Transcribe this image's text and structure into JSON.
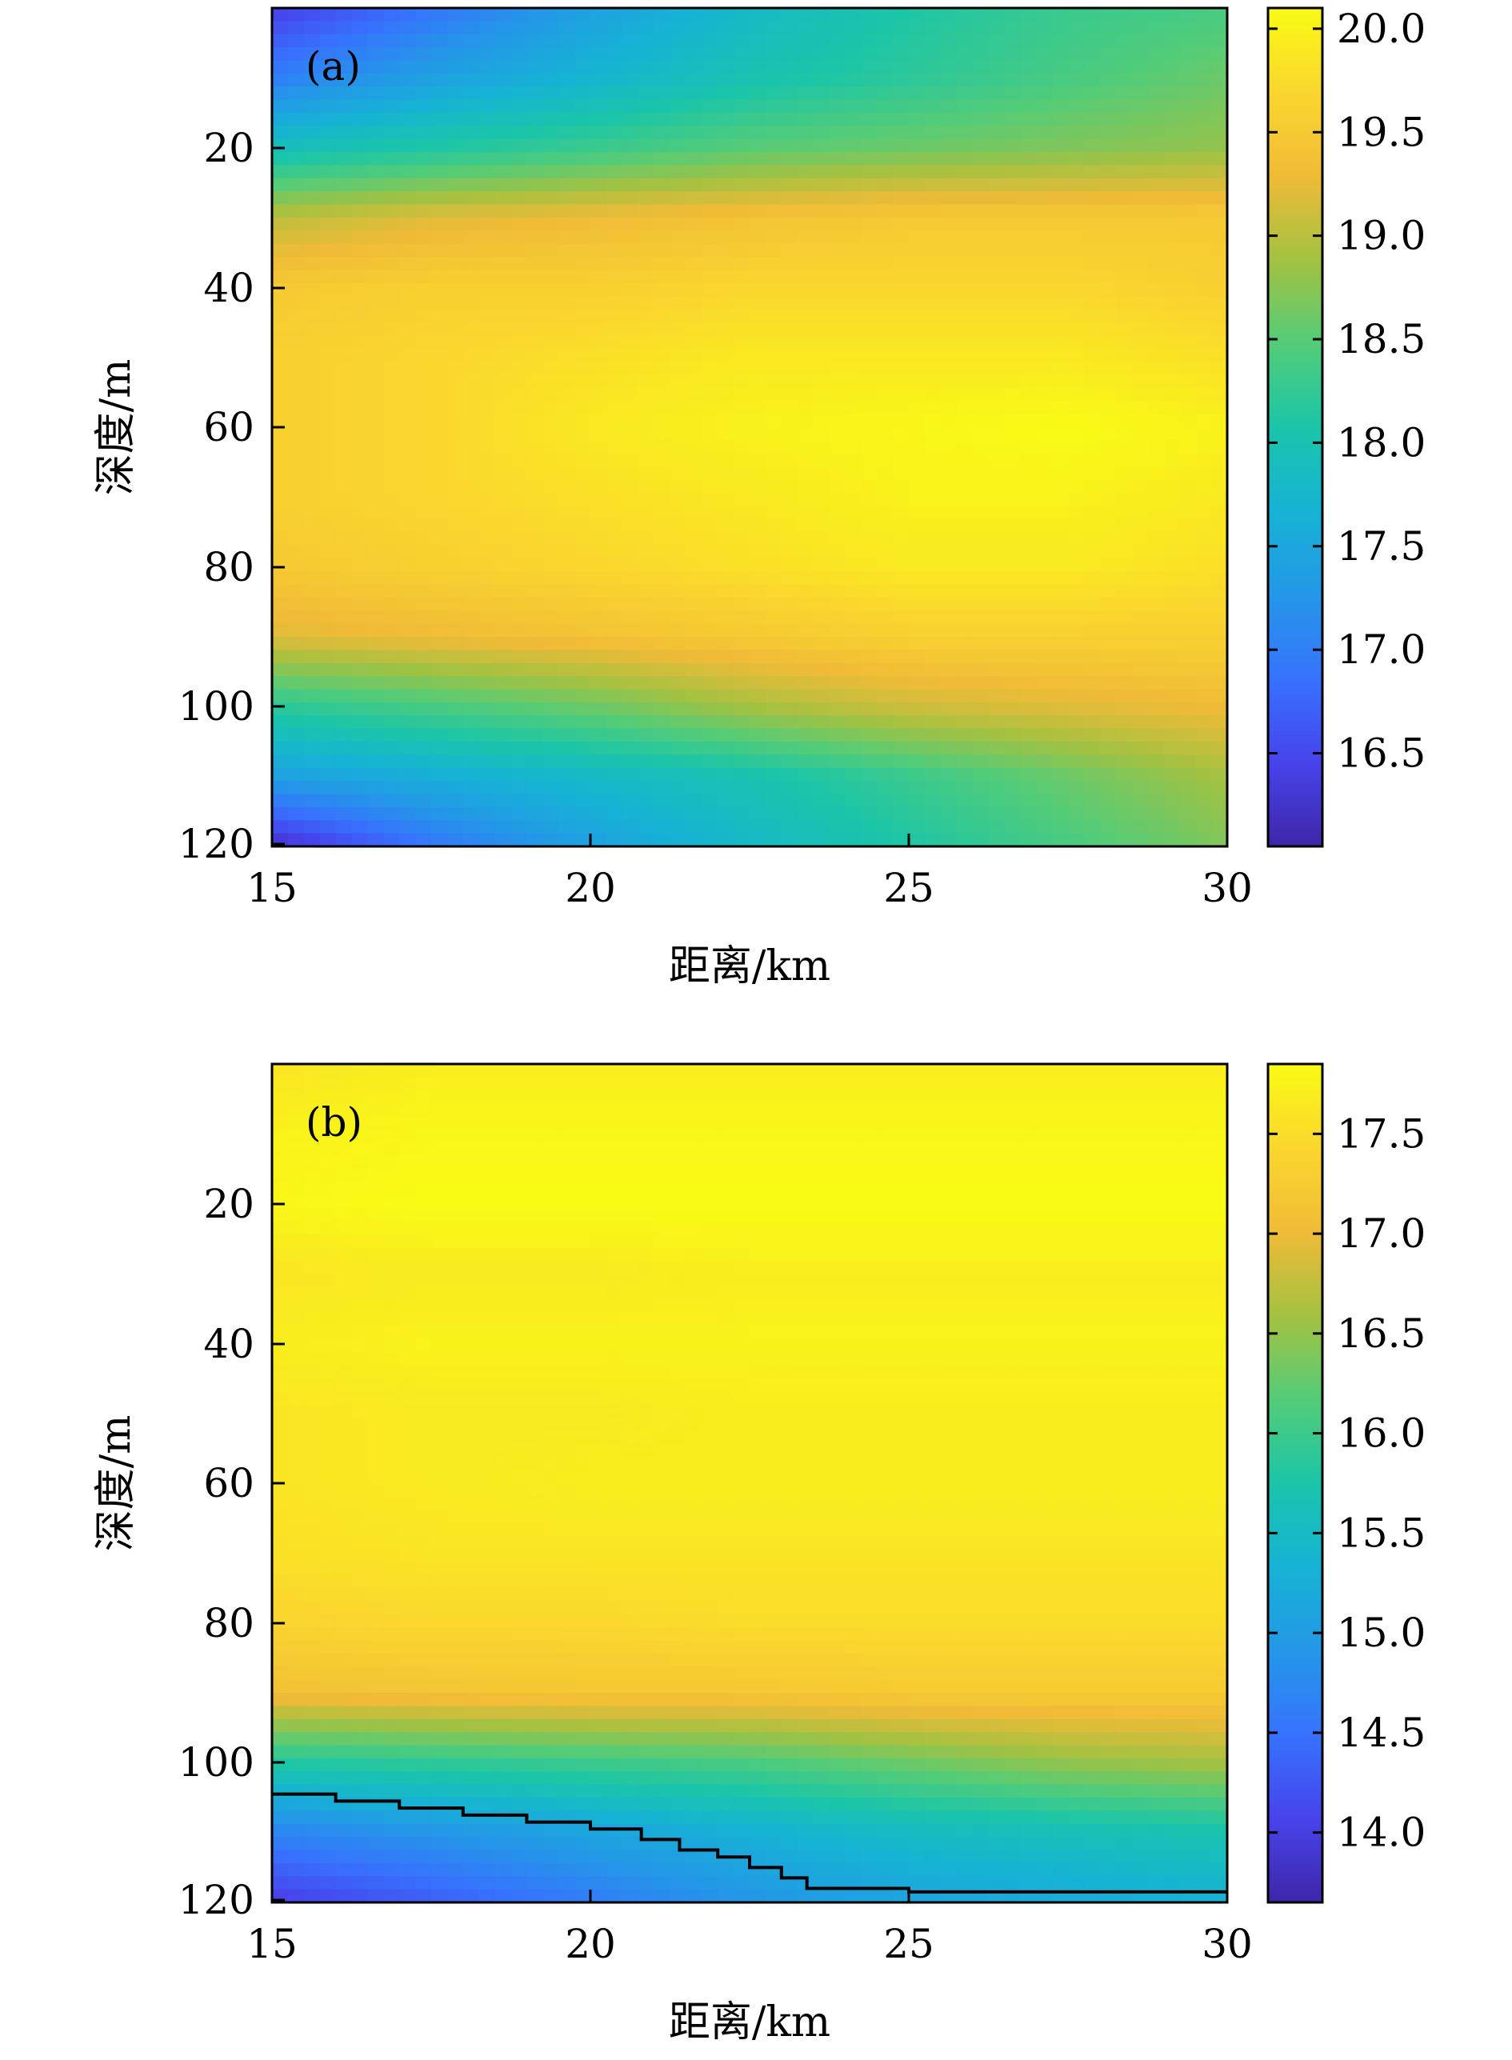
{
  "chart_data": [
    {
      "type": "heatmap",
      "panel_label": "(a)",
      "xlabel": "距离/km",
      "ylabel": "深度/m",
      "xlim": [
        15,
        30
      ],
      "ylim": [
        0,
        120
      ],
      "y_axis_direction": "down",
      "x_ticks": [
        "15",
        "20",
        "25",
        "30"
      ],
      "y_ticks": [
        "20",
        "40",
        "60",
        "80",
        "100",
        "120"
      ],
      "colorbar": {
        "range": [
          16.05,
          20.1
        ],
        "ticks": [
          "16.5",
          "17.0",
          "17.5",
          "18.0",
          "18.5",
          "19.0",
          "19.5",
          "20.0"
        ]
      },
      "field": {
        "x": [
          15,
          17.5,
          20,
          22.5,
          25,
          27.5,
          30
        ],
        "depth": [
          0,
          10,
          20,
          30,
          40,
          50,
          60,
          70,
          80,
          90,
          100,
          110,
          120
        ],
        "values": [
          [
            16.4,
            16.9,
            17.4,
            17.8,
            18.1,
            18.3,
            18.4
          ],
          [
            17.0,
            17.4,
            17.7,
            18.0,
            18.2,
            18.4,
            18.6
          ],
          [
            17.9,
            18.1,
            18.3,
            18.5,
            18.6,
            18.7,
            18.8
          ],
          [
            19.0,
            19.2,
            19.3,
            19.4,
            19.5,
            19.5,
            19.5
          ],
          [
            19.5,
            19.6,
            19.6,
            19.7,
            19.7,
            19.7,
            19.6
          ],
          [
            19.6,
            19.7,
            19.8,
            19.9,
            19.9,
            19.9,
            19.8
          ],
          [
            19.6,
            19.7,
            19.9,
            20.0,
            20.05,
            20.1,
            20.0
          ],
          [
            19.6,
            19.7,
            19.8,
            19.9,
            20.0,
            20.0,
            19.9
          ],
          [
            19.5,
            19.6,
            19.7,
            19.8,
            19.9,
            19.9,
            19.8
          ],
          [
            19.2,
            19.3,
            19.4,
            19.5,
            19.6,
            19.6,
            19.6
          ],
          [
            18.2,
            18.4,
            18.6,
            18.9,
            19.1,
            19.2,
            19.3
          ],
          [
            17.4,
            17.6,
            17.8,
            18.0,
            18.3,
            18.6,
            18.9
          ],
          [
            16.2,
            16.9,
            17.4,
            17.8,
            18.1,
            18.4,
            18.7
          ]
        ]
      }
    },
    {
      "type": "heatmap",
      "panel_label": "(b)",
      "xlabel": "距离/km",
      "ylabel": "深度/m",
      "xlim": [
        15,
        30
      ],
      "ylim": [
        0,
        120
      ],
      "y_axis_direction": "down",
      "x_ticks": [
        "15",
        "20",
        "25",
        "30"
      ],
      "y_ticks": [
        "20",
        "40",
        "60",
        "80",
        "100",
        "120"
      ],
      "colorbar": {
        "range": [
          13.65,
          17.85
        ],
        "ticks": [
          "14.0",
          "14.5",
          "15.0",
          "15.5",
          "16.0",
          "16.5",
          "17.0",
          "17.5"
        ]
      },
      "field": {
        "x": [
          15,
          17.5,
          20,
          22.5,
          25,
          27.5,
          30
        ],
        "depth": [
          0,
          10,
          20,
          30,
          40,
          50,
          60,
          70,
          80,
          90,
          100,
          110,
          120
        ],
        "values": [
          [
            17.6,
            17.7,
            17.7,
            17.7,
            17.7,
            17.7,
            17.7
          ],
          [
            17.75,
            17.8,
            17.8,
            17.8,
            17.8,
            17.8,
            17.8
          ],
          [
            17.8,
            17.85,
            17.85,
            17.85,
            17.85,
            17.85,
            17.85
          ],
          [
            17.6,
            17.65,
            17.65,
            17.7,
            17.7,
            17.7,
            17.7
          ],
          [
            17.7,
            17.75,
            17.75,
            17.75,
            17.75,
            17.75,
            17.75
          ],
          [
            17.6,
            17.65,
            17.65,
            17.7,
            17.7,
            17.7,
            17.7
          ],
          [
            17.6,
            17.65,
            17.7,
            17.7,
            17.7,
            17.7,
            17.7
          ],
          [
            17.55,
            17.6,
            17.6,
            17.6,
            17.6,
            17.6,
            17.6
          ],
          [
            17.4,
            17.45,
            17.45,
            17.5,
            17.5,
            17.5,
            17.5
          ],
          [
            17.1,
            17.15,
            17.2,
            17.2,
            17.25,
            17.25,
            17.25
          ],
          [
            15.8,
            15.9,
            16.0,
            16.1,
            16.3,
            16.5,
            16.6
          ],
          [
            14.7,
            14.9,
            15.1,
            15.3,
            15.5,
            15.6,
            15.7
          ],
          [
            14.0,
            14.3,
            14.6,
            14.9,
            15.1,
            15.2,
            15.3
          ]
        ]
      },
      "contour_line": {
        "x": [
          15,
          16,
          17,
          18,
          19,
          20,
          20.8,
          21.4,
          22,
          22.5,
          23,
          23.4,
          25,
          30
        ],
        "depth": [
          104.5,
          105.5,
          106.5,
          107.5,
          108.5,
          109.5,
          111,
          112.5,
          113.5,
          115,
          116.5,
          118,
          118.5,
          118.5
        ]
      }
    }
  ]
}
